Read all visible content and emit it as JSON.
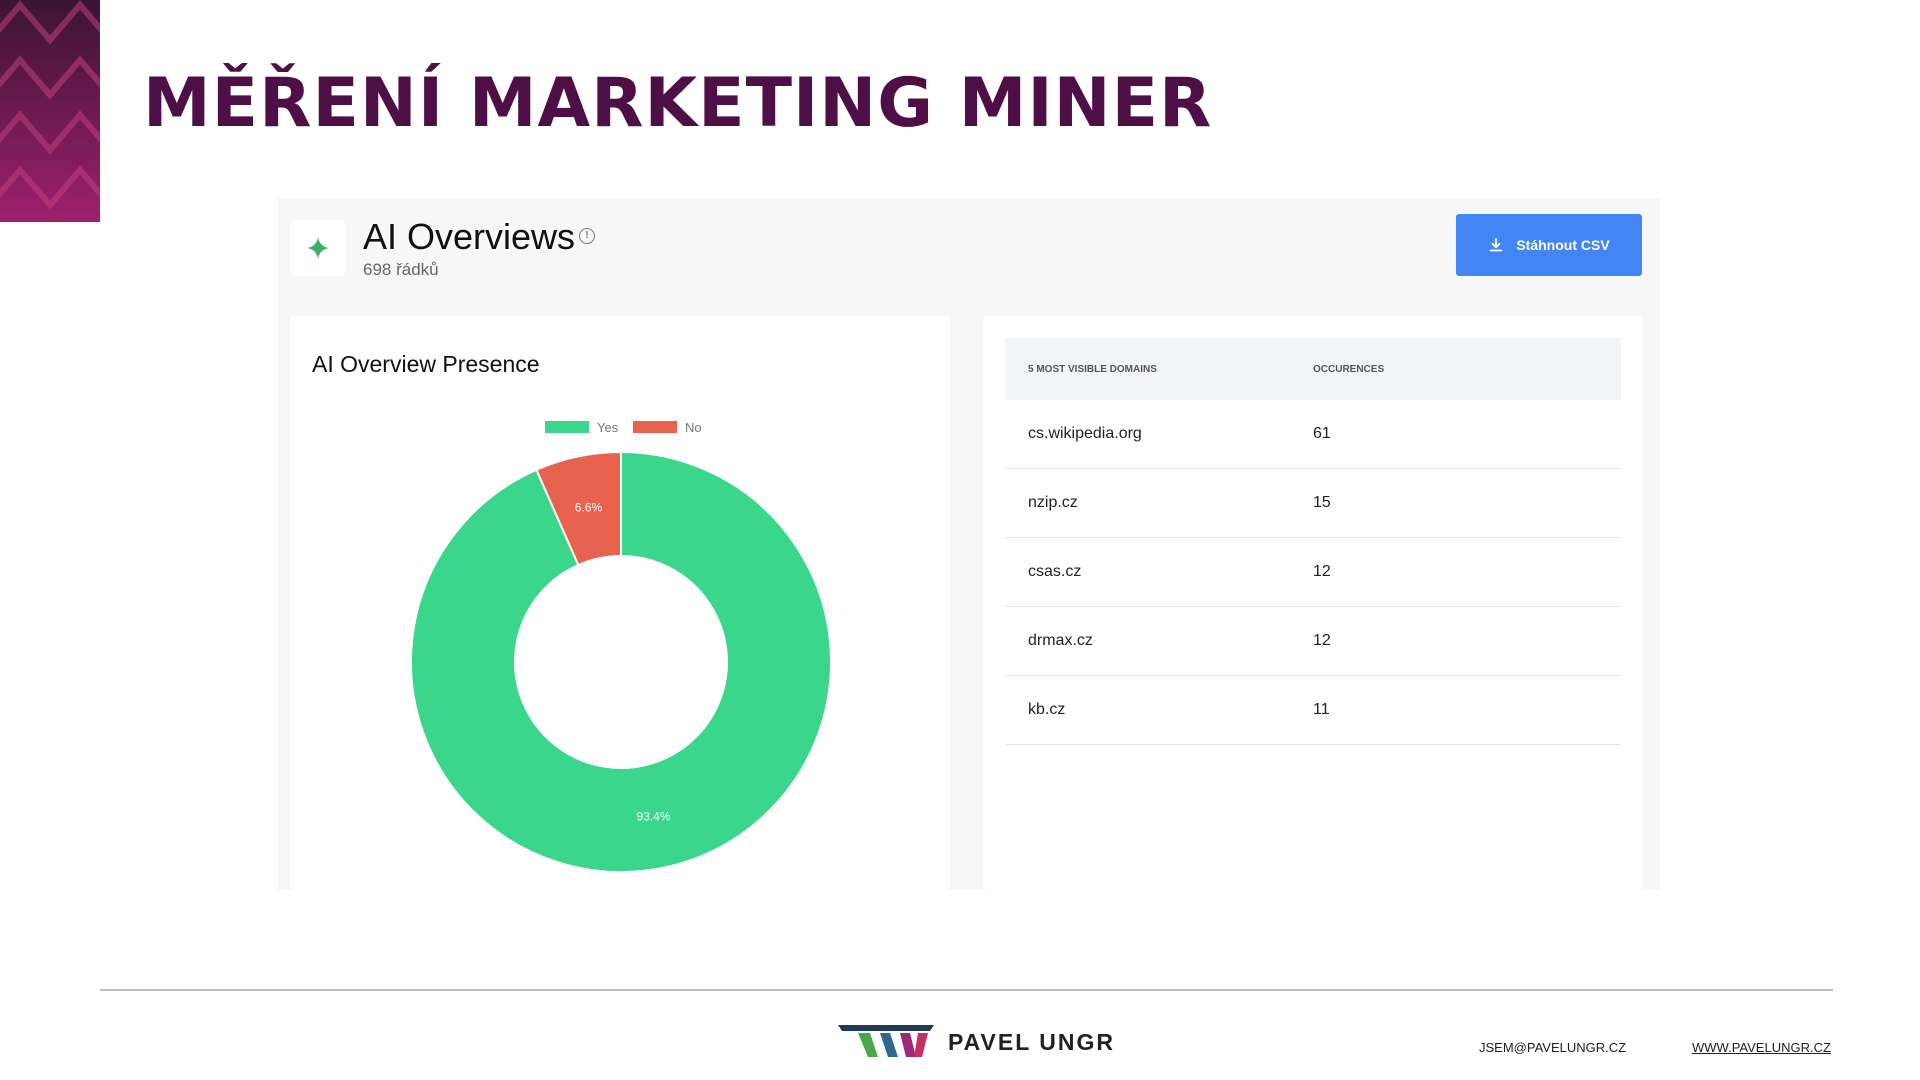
{
  "slide": {
    "title": "MĚŘENÍ MARKETING MINER"
  },
  "header": {
    "title": "AI Overviews",
    "subtitle": "698 řádků",
    "csv_button": "Stáhnout CSV",
    "icon": "sparkle-icon",
    "accent": "#4285f4"
  },
  "presence_card": {
    "title": "AI Overview Presence"
  },
  "chart_data": {
    "type": "pie",
    "categories": [
      "Yes",
      "No"
    ],
    "values": [
      93.4,
      6.6
    ],
    "labels": [
      "93.4%",
      "6.6%"
    ],
    "colors": [
      "#39d68b",
      "#e8634d"
    ],
    "legend": "top",
    "donut": true
  },
  "domains_table": {
    "headers": [
      "5 MOST VISIBLE DOMAINS",
      "OCCURENCES"
    ],
    "rows": [
      {
        "domain": "cs.wikipedia.org",
        "count": "61"
      },
      {
        "domain": "nzip.cz",
        "count": "15"
      },
      {
        "domain": "csas.cz",
        "count": "12"
      },
      {
        "domain": "drmax.cz",
        "count": "12"
      },
      {
        "domain": "kb.cz",
        "count": "11"
      }
    ]
  },
  "footer": {
    "name": "PAVEL UNGR",
    "email": "JSEM@PAVELUNGR.CZ",
    "website": "WWW.PAVELUNGR.CZ"
  }
}
